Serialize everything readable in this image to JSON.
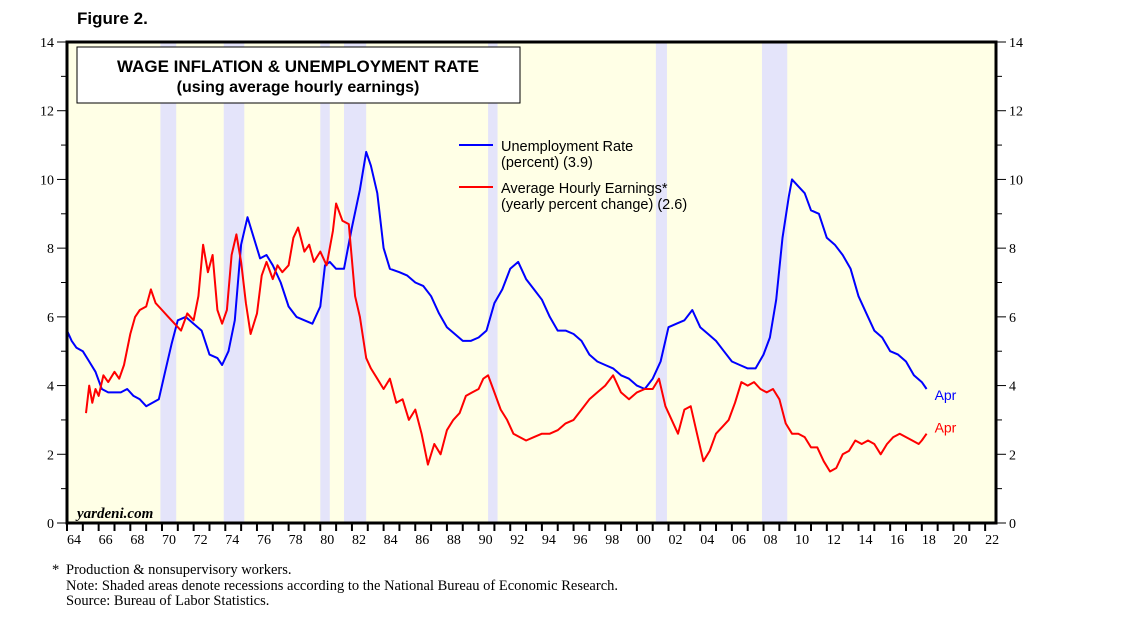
{
  "figure_label": "Figure 2.",
  "watermark": "yardeni.com",
  "footnotes": {
    "marker": "*",
    "production_note": "Production & nonsupervisory workers.",
    "shading_note": "Note: Shaded areas denote recessions according to the National Bureau of Economic Research.",
    "source": "Source: Bureau of Labor Statistics."
  },
  "colors": {
    "plot_background": "#ffffe6",
    "recession_shading": "#e4e4fa",
    "unemployment": "#0000ff",
    "earnings": "#ff0000"
  },
  "chart_data": {
    "type": "line",
    "title": "WAGE INFLATION & UNEMPLOYMENT RATE",
    "subtitle": "(using average hourly earnings)",
    "xlabel": "",
    "ylabel": "",
    "xlim": [
      1964,
      2023
    ],
    "ylim": [
      0,
      14
    ],
    "y_ticks": [
      0,
      2,
      4,
      6,
      8,
      10,
      12,
      14
    ],
    "y_minor_ticks": [
      1,
      3,
      5,
      7,
      9,
      11,
      13
    ],
    "x_tick_labels": [
      "64",
      "66",
      "68",
      "70",
      "72",
      "74",
      "76",
      "78",
      "80",
      "82",
      "84",
      "86",
      "88",
      "90",
      "92",
      "94",
      "96",
      "98",
      "00",
      "02",
      "04",
      "06",
      "08",
      "10",
      "12",
      "14",
      "16",
      "18",
      "20",
      "22"
    ],
    "x_tick_years": [
      1964,
      1966,
      1968,
      1970,
      1972,
      1974,
      1976,
      1978,
      1980,
      1982,
      1984,
      1986,
      1988,
      1990,
      1992,
      1994,
      1996,
      1998,
      2000,
      2002,
      2004,
      2006,
      2008,
      2010,
      2012,
      2014,
      2016,
      2018,
      2020,
      2022
    ],
    "legend_position": "top-center",
    "grid": false,
    "recessions": [
      [
        1969.9,
        1970.9
      ],
      [
        1973.9,
        1975.2
      ],
      [
        1980.0,
        1980.6
      ],
      [
        1981.5,
        1982.9
      ],
      [
        1990.6,
        1991.2
      ],
      [
        2001.2,
        2001.9
      ],
      [
        2007.9,
        2009.5
      ]
    ],
    "series": [
      {
        "name": "Unemployment Rate",
        "legend_line1": "Unemployment Rate",
        "legend_line2": "(percent) (3.9)",
        "end_label": "Apr",
        "latest": 3.9,
        "x": [
          1964.0,
          1964.3,
          1964.6,
          1965.0,
          1965.4,
          1965.8,
          1966.2,
          1966.6,
          1967.0,
          1967.4,
          1967.8,
          1968.2,
          1968.6,
          1969.0,
          1969.4,
          1969.8,
          1970.2,
          1970.6,
          1971.0,
          1971.5,
          1972.0,
          1972.5,
          1973.0,
          1973.5,
          1973.8,
          1974.2,
          1974.6,
          1975.0,
          1975.4,
          1975.8,
          1976.2,
          1976.6,
          1977.0,
          1977.5,
          1978.0,
          1978.5,
          1979.0,
          1979.5,
          1980.0,
          1980.3,
          1980.6,
          1981.0,
          1981.5,
          1982.0,
          1982.5,
          1982.9,
          1983.2,
          1983.6,
          1984.0,
          1984.4,
          1985.0,
          1985.5,
          1986.0,
          1986.5,
          1987.0,
          1987.5,
          1988.0,
          1988.5,
          1989.0,
          1989.5,
          1990.0,
          1990.5,
          1991.0,
          1991.5,
          1992.0,
          1992.5,
          1993.0,
          1993.5,
          1994.0,
          1994.5,
          1995.0,
          1995.5,
          1996.0,
          1996.5,
          1997.0,
          1997.5,
          1998.0,
          1998.5,
          1999.0,
          1999.5,
          2000.0,
          2000.5,
          2001.0,
          2001.5,
          2002.0,
          2002.5,
          2003.0,
          2003.5,
          2004.0,
          2004.5,
          2005.0,
          2005.5,
          2006.0,
          2006.5,
          2007.0,
          2007.5,
          2008.0,
          2008.4,
          2008.8,
          2009.2,
          2009.6,
          2009.8,
          2010.2,
          2010.6,
          2011.0,
          2011.5,
          2012.0,
          2012.5,
          2013.0,
          2013.5,
          2014.0,
          2014.5,
          2015.0,
          2015.5,
          2016.0,
          2016.5,
          2017.0,
          2017.5,
          2018.0,
          2018.3
        ],
        "values": [
          5.6,
          5.3,
          5.1,
          5.0,
          4.7,
          4.4,
          3.9,
          3.8,
          3.8,
          3.8,
          3.9,
          3.7,
          3.6,
          3.4,
          3.5,
          3.6,
          4.4,
          5.2,
          5.9,
          6.0,
          5.8,
          5.6,
          4.9,
          4.8,
          4.6,
          5.0,
          5.9,
          8.1,
          8.9,
          8.3,
          7.7,
          7.8,
          7.5,
          7.0,
          6.3,
          6.0,
          5.9,
          5.8,
          6.3,
          7.5,
          7.6,
          7.4,
          7.4,
          8.6,
          9.7,
          10.8,
          10.4,
          9.6,
          8.0,
          7.4,
          7.3,
          7.2,
          7.0,
          6.9,
          6.6,
          6.1,
          5.7,
          5.5,
          5.3,
          5.3,
          5.4,
          5.6,
          6.4,
          6.8,
          7.4,
          7.6,
          7.1,
          6.8,
          6.5,
          6.0,
          5.6,
          5.6,
          5.5,
          5.3,
          4.9,
          4.7,
          4.6,
          4.5,
          4.3,
          4.2,
          4.0,
          3.9,
          4.2,
          4.7,
          5.7,
          5.8,
          5.9,
          6.2,
          5.7,
          5.5,
          5.3,
          5.0,
          4.7,
          4.6,
          4.5,
          4.5,
          4.9,
          5.4,
          6.5,
          8.3,
          9.5,
          10.0,
          9.8,
          9.6,
          9.1,
          9.0,
          8.3,
          8.1,
          7.8,
          7.4,
          6.6,
          6.1,
          5.6,
          5.4,
          5.0,
          4.9,
          4.7,
          4.3,
          4.1,
          3.9
        ]
      },
      {
        "name": "Average Hourly Earnings*",
        "legend_line1": "Average Hourly Earnings*",
        "legend_line2": "(yearly percent change) (2.6)",
        "end_label": "Apr",
        "latest": 2.6,
        "x": [
          1965.2,
          1965.4,
          1965.6,
          1965.8,
          1966.0,
          1966.3,
          1966.6,
          1967.0,
          1967.3,
          1967.6,
          1968.0,
          1968.3,
          1968.6,
          1969.0,
          1969.3,
          1969.6,
          1970.0,
          1970.4,
          1970.8,
          1971.2,
          1971.6,
          1972.0,
          1972.3,
          1972.6,
          1972.9,
          1973.2,
          1973.5,
          1973.8,
          1974.1,
          1974.4,
          1974.7,
          1975.0,
          1975.3,
          1975.6,
          1976.0,
          1976.3,
          1976.6,
          1977.0,
          1977.3,
          1977.6,
          1978.0,
          1978.3,
          1978.6,
          1979.0,
          1979.3,
          1979.6,
          1980.0,
          1980.4,
          1980.8,
          1981.0,
          1981.4,
          1981.8,
          1982.2,
          1982.5,
          1982.9,
          1983.2,
          1983.6,
          1984.0,
          1984.4,
          1984.8,
          1985.2,
          1985.6,
          1986.0,
          1986.4,
          1986.8,
          1987.2,
          1987.6,
          1988.0,
          1988.4,
          1988.8,
          1989.2,
          1989.6,
          1990.0,
          1990.3,
          1990.6,
          1991.0,
          1991.4,
          1991.8,
          1992.2,
          1992.6,
          1993.0,
          1993.5,
          1994.0,
          1994.5,
          1995.0,
          1995.5,
          1996.0,
          1996.5,
          1997.0,
          1997.5,
          1998.0,
          1998.5,
          1999.0,
          1999.5,
          2000.0,
          2000.5,
          2001.0,
          2001.4,
          2001.8,
          2002.2,
          2002.6,
          2003.0,
          2003.4,
          2003.8,
          2004.2,
          2004.6,
          2005.0,
          2005.4,
          2005.8,
          2006.2,
          2006.6,
          2007.0,
          2007.4,
          2007.8,
          2008.2,
          2008.6,
          2009.0,
          2009.4,
          2009.8,
          2010.2,
          2010.6,
          2011.0,
          2011.4,
          2011.8,
          2012.2,
          2012.6,
          2013.0,
          2013.4,
          2013.8,
          2014.2,
          2014.6,
          2015.0,
          2015.4,
          2015.8,
          2016.2,
          2016.6,
          2017.0,
          2017.4,
          2017.8,
          2018.0,
          2018.3
        ],
        "values": [
          3.2,
          4.0,
          3.5,
          3.9,
          3.7,
          4.3,
          4.1,
          4.4,
          4.2,
          4.6,
          5.5,
          6.0,
          6.2,
          6.3,
          6.8,
          6.4,
          6.2,
          6.0,
          5.8,
          5.6,
          6.1,
          5.9,
          6.6,
          8.1,
          7.3,
          7.8,
          6.2,
          5.8,
          6.2,
          7.8,
          8.4,
          7.6,
          6.4,
          5.5,
          6.1,
          7.2,
          7.6,
          7.1,
          7.5,
          7.3,
          7.5,
          8.3,
          8.6,
          7.9,
          8.1,
          7.6,
          7.9,
          7.5,
          8.5,
          9.3,
          8.8,
          8.7,
          6.6,
          6.0,
          4.8,
          4.5,
          4.2,
          3.9,
          4.2,
          3.5,
          3.6,
          3.0,
          3.3,
          2.6,
          1.7,
          2.3,
          2.0,
          2.7,
          3.0,
          3.2,
          3.7,
          3.8,
          3.9,
          4.2,
          4.3,
          3.8,
          3.3,
          3.0,
          2.6,
          2.5,
          2.4,
          2.5,
          2.6,
          2.6,
          2.7,
          2.9,
          3.0,
          3.3,
          3.6,
          3.8,
          4.0,
          4.3,
          3.8,
          3.6,
          3.8,
          3.9,
          3.9,
          4.2,
          3.4,
          3.0,
          2.6,
          3.3,
          3.4,
          2.6,
          1.8,
          2.1,
          2.6,
          2.8,
          3.0,
          3.5,
          4.1,
          4.0,
          4.1,
          3.9,
          3.8,
          3.9,
          3.6,
          2.9,
          2.6,
          2.6,
          2.5,
          2.2,
          2.2,
          1.8,
          1.5,
          1.6,
          2.0,
          2.1,
          2.4,
          2.3,
          2.4,
          2.3,
          2.0,
          2.3,
          2.5,
          2.6,
          2.5,
          2.4,
          2.3,
          2.4,
          2.6
        ]
      }
    ]
  }
}
